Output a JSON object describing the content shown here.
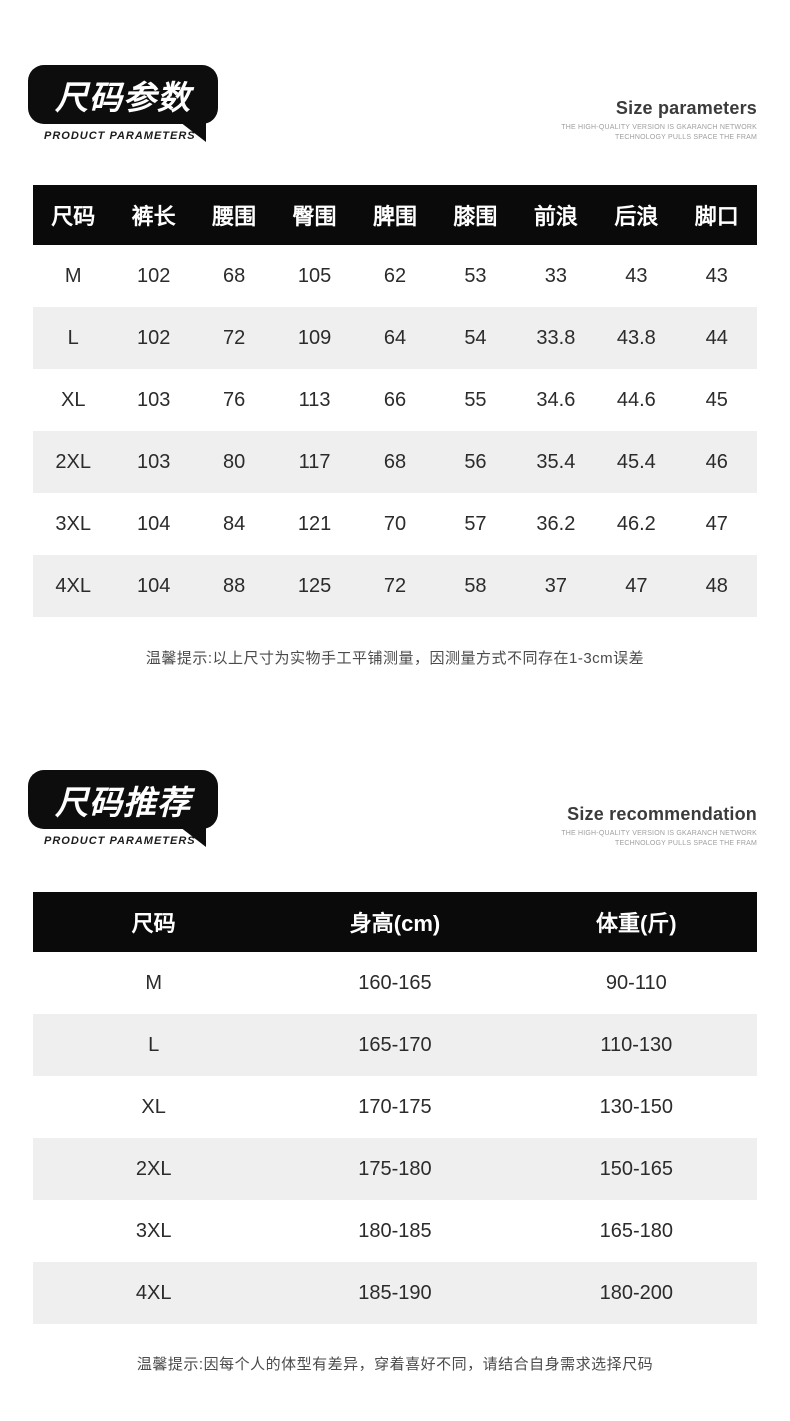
{
  "colors": {
    "header_bar": "#0a0a0a",
    "badge_bg": "#0d0d0d",
    "alt_row_bg": "#efefef",
    "body_text": "#2b2b2b",
    "note_text": "#4b4b4b"
  },
  "section1": {
    "badge_title": "尺码参数",
    "badge_subtitle": "PRODUCT PARAMETERS",
    "right_title": "Size parameters",
    "right_sub_line1": "THE HIGH-QUALITY VERSION IS GKARANCH NETWORK",
    "right_sub_line2": "TECHNOLOGY PULLS SPACE THE FRAM",
    "table": {
      "headers": [
        "尺码",
        "裤长",
        "腰围",
        "臀围",
        "脾围",
        "膝围",
        "前浪",
        "后浪",
        "脚口"
      ],
      "rows": [
        [
          "M",
          "102",
          "68",
          "105",
          "62",
          "53",
          "33",
          "43",
          "43"
        ],
        [
          "L",
          "102",
          "72",
          "109",
          "64",
          "54",
          "33.8",
          "43.8",
          "44"
        ],
        [
          "XL",
          "103",
          "76",
          "113",
          "66",
          "55",
          "34.6",
          "44.6",
          "45"
        ],
        [
          "2XL",
          "103",
          "80",
          "117",
          "68",
          "56",
          "35.4",
          "45.4",
          "46"
        ],
        [
          "3XL",
          "104",
          "84",
          "121",
          "70",
          "57",
          "36.2",
          "46.2",
          "47"
        ],
        [
          "4XL",
          "104",
          "88",
          "125",
          "72",
          "58",
          "37",
          "47",
          "48"
        ]
      ]
    },
    "note": "温馨提示:以上尺寸为实物手工平铺测量，因测量方式不同存在1-3cm误差"
  },
  "section2": {
    "badge_title": "尺码推荐",
    "badge_subtitle": "PRODUCT PARAMETERS",
    "right_title": "Size recommendation",
    "right_sub_line1": "THE HIGH-QUALITY VERSION IS GKARANCH NETWORK",
    "right_sub_line2": "TECHNOLOGY PULLS SPACE THE FRAM",
    "table": {
      "headers": [
        "尺码",
        "身高(cm)",
        "体重(斤)"
      ],
      "rows": [
        [
          "M",
          "160-165",
          "90-110"
        ],
        [
          "L",
          "165-170",
          "110-130"
        ],
        [
          "XL",
          "170-175",
          "130-150"
        ],
        [
          "2XL",
          "175-180",
          "150-165"
        ],
        [
          "3XL",
          "180-185",
          "165-180"
        ],
        [
          "4XL",
          "185-190",
          "180-200"
        ]
      ]
    },
    "note": "温馨提示:因每个人的体型有差异，穿着喜好不同，请结合自身需求选择尺码"
  }
}
